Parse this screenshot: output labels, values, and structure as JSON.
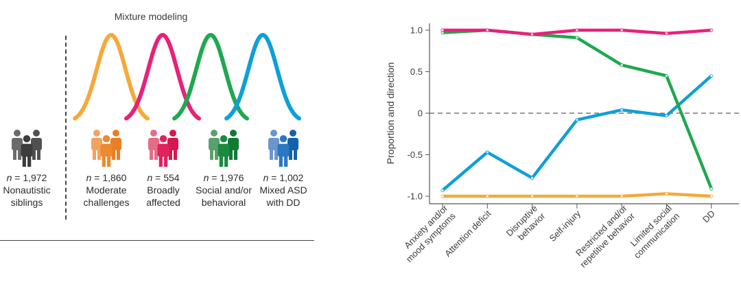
{
  "left_panel": {
    "title": "Mixture modeling",
    "reference_group": {
      "n_prefix": "n",
      "n_value": "= 1,972",
      "label_line1": "Nonautistic",
      "label_line2": "siblings",
      "colors": [
        "#6b6b6b",
        "#3c3c3c",
        "#505050"
      ]
    },
    "classes": [
      {
        "n_prefix": "n",
        "n_value": "= 1,860",
        "label_line1": "Moderate",
        "label_line2": "challenges",
        "curve_color": "#f5a93b",
        "icon_colors": [
          "#f3a15c",
          "#ec8a2f",
          "#e87f25"
        ]
      },
      {
        "n_prefix": "n",
        "n_value": "= 554",
        "label_line1": "Broadly",
        "label_line2": "affected",
        "curve_color": "#e8217a",
        "icon_colors": [
          "#e66c86",
          "#e2215f",
          "#d8174f"
        ]
      },
      {
        "n_prefix": "n",
        "n_value": "= 1,976",
        "label_line1": "Social and/or",
        "label_line2": "behavioral",
        "curve_color": "#1fa84f",
        "icon_colors": [
          "#5aa06c",
          "#1a8a3f",
          "#0f7a34"
        ]
      },
      {
        "n_prefix": "n",
        "n_value": "= 1,002",
        "label_line1": "Mixed ASD",
        "label_line2": "with DD",
        "curve_color": "#0ea0d8",
        "icon_colors": [
          "#6b95cc",
          "#2a78c2",
          "#1462aa"
        ]
      }
    ]
  },
  "chart_data": {
    "type": "line",
    "title": "",
    "xlabel": "",
    "ylabel": "Proportion and direction",
    "ylim": [
      -1.0,
      1.0
    ],
    "yticks": [
      {
        "value": 1.0,
        "label": "1.0"
      },
      {
        "value": 0.5,
        "label": "0.5"
      },
      {
        "value": 0,
        "label": "0"
      },
      {
        "value": -0.5,
        "label": "-0.5"
      },
      {
        "value": -1.0,
        "label": "-1.0"
      }
    ],
    "reference_line": {
      "value": 0,
      "style": "dashed",
      "color": "#777777"
    },
    "grid": false,
    "legend": "none",
    "categories": [
      [
        "Anxiety and/or",
        "mood symptoms"
      ],
      [
        "Attention deficit"
      ],
      [
        "Disruptive",
        "behavior"
      ],
      [
        "Self-injury"
      ],
      [
        "Restricted and/or",
        "repetitive behavior"
      ],
      [
        "Limited social",
        "communication"
      ],
      [
        "DD"
      ]
    ],
    "series": [
      {
        "name": "Moderate challenges",
        "color": "#f5a93b",
        "values": [
          -1.0,
          -1.0,
          -1.0,
          -1.0,
          -1.0,
          -0.97,
          -1.0
        ]
      },
      {
        "name": "Mixed ASD with DD",
        "color": "#0ea0d8",
        "values": [
          -0.93,
          -0.47,
          -0.78,
          -0.08,
          0.04,
          -0.03,
          0.45
        ]
      },
      {
        "name": "Social and/or behavioral",
        "color": "#1fa84f",
        "values": [
          0.97,
          1.0,
          0.95,
          0.91,
          0.58,
          0.45,
          -0.91
        ]
      },
      {
        "name": "Broadly affected",
        "color": "#e8217a",
        "values": [
          1.0,
          1.0,
          0.95,
          1.0,
          1.0,
          0.96,
          1.0
        ]
      }
    ]
  }
}
